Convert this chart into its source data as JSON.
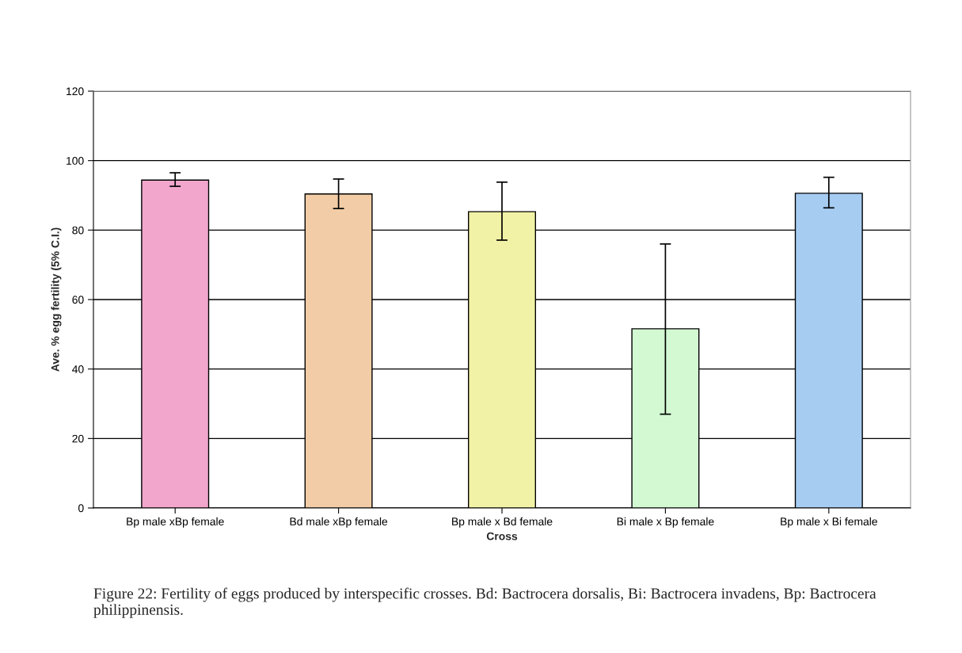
{
  "chart_data": {
    "type": "bar",
    "xlabel": "Cross",
    "ylabel": "Ave. % egg fertility (5% C.I.)",
    "categories": [
      "Bp male xBp female",
      "Bd male xBp female",
      "Bp male x Bd female",
      "Bi male x Bp female",
      "Bp male x Bi female"
    ],
    "values": [
      94.4,
      90.4,
      85.3,
      51.6,
      90.6
    ],
    "colors": [
      "#ff99cc",
      "#ffcc99",
      "#ffff99",
      "#ccffcc",
      "#99ccff"
    ],
    "errors": [
      [
        92.6,
        96.5
      ],
      [
        86.2,
        94.7
      ],
      [
        77.1,
        93.8
      ],
      [
        27.0,
        76.0
      ],
      [
        86.4,
        95.2
      ]
    ],
    "ylim": [
      0,
      120
    ],
    "yticks": [
      0,
      20,
      40,
      60,
      80,
      100,
      120
    ],
    "grid": "y",
    "annotations": [
      "Figure 22: Fertility of eggs produced by interspecific crosses. Bd: Bactrocera dorsalis, Bi: Bactrocera invadens, Bp: Bactrocera philippinensis."
    ]
  }
}
